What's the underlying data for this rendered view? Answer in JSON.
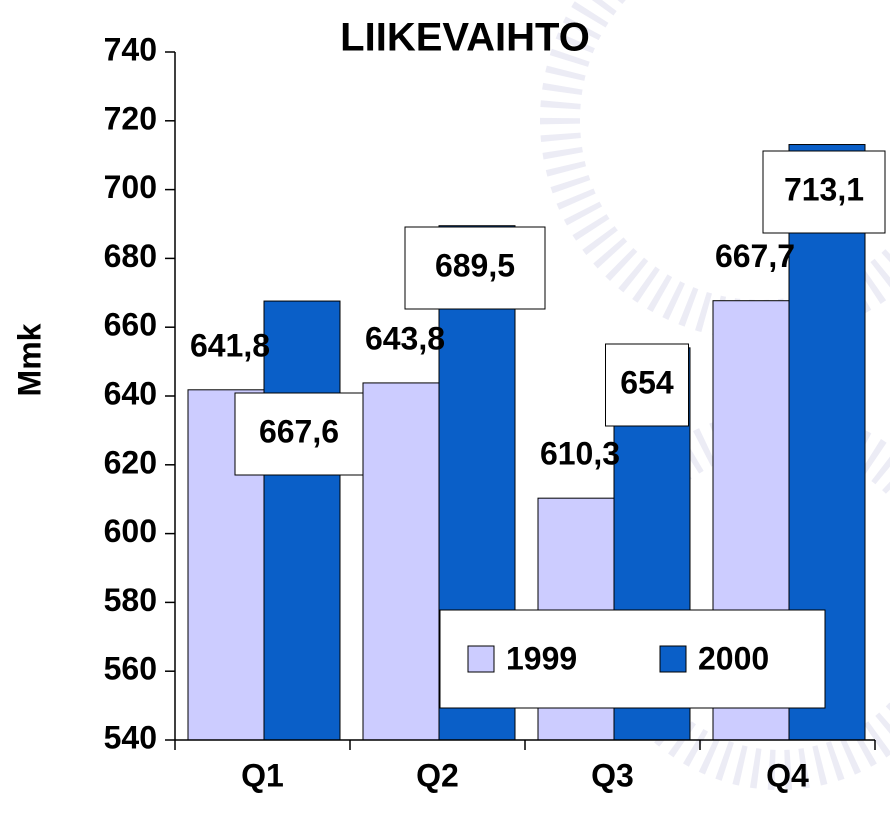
{
  "chart_data": {
    "type": "bar",
    "title": "LIIKEVAIHTO",
    "y_label": "Mmk",
    "categories": [
      "Q1",
      "Q2",
      "Q3",
      "Q4"
    ],
    "series": [
      {
        "name": "1999",
        "color": "#ccccff",
        "values": [
          641.8,
          643.8,
          610.3,
          667.7
        ],
        "value_labels": [
          "641,8",
          "643,8",
          "610,3",
          "667,7"
        ]
      },
      {
        "name": "2000",
        "color": "#0a5fc8",
        "values": [
          667.6,
          689.5,
          654,
          713.1
        ],
        "value_labels": [
          "667,6",
          "689,5",
          "654",
          "713,1"
        ]
      }
    ],
    "ylim": [
      540,
      740
    ],
    "yticks": [
      540,
      560,
      580,
      600,
      620,
      640,
      660,
      680,
      700,
      720,
      740
    ],
    "legend": "lower right"
  }
}
